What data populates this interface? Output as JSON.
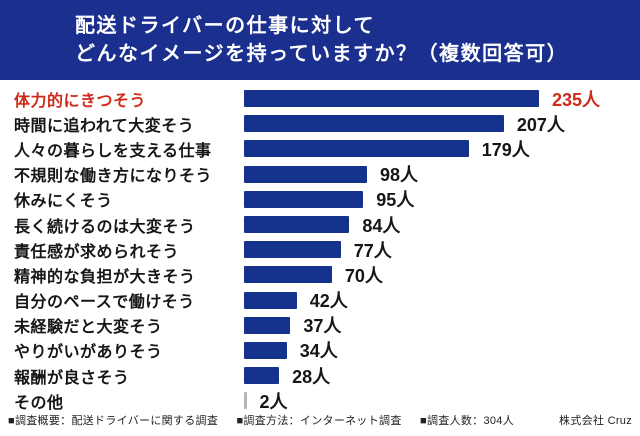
{
  "header": {
    "title_line1": "配送ドライバーの仕事に対して",
    "title_line2": "どんなイメージを持っていますか？（複数回答可）"
  },
  "chart_data": {
    "type": "bar",
    "orientation": "horizontal",
    "title": "配送ドライバーの仕事に対して どんなイメージを持っていますか？（複数回答可）",
    "categories": [
      "体力的にきつそう",
      "時間に追われて大変そう",
      "人々の暮らしを支える仕事",
      "不規則な働き方になりそう",
      "休みにくそう",
      "長く続けるのは大変そう",
      "責任感が求められそう",
      "精神的な負担が大きそう",
      "自分のペースで働けそう",
      "未経験だと大変そう",
      "やりがいがありそう",
      "報酬が良さそう",
      "その他"
    ],
    "values": [
      235,
      207,
      179,
      98,
      95,
      84,
      77,
      70,
      42,
      37,
      34,
      28,
      2
    ],
    "value_suffix": "人",
    "xlim": [
      0,
      250
    ],
    "grid": false,
    "legend": false,
    "highlight_index": 0,
    "sample_size": 304
  },
  "colors": {
    "header_bg": "#1a2f8e",
    "bar": "#15328c",
    "accent_red": "#d02a1a",
    "tiny_bar": "#b3b6bd"
  },
  "footer": {
    "survey_overview": "■調査概要：配送ドライバーに関する調査",
    "survey_method": "■調査方法：インターネット調査",
    "survey_count": "■調査人数：304人",
    "company": "株式会社 Cruz"
  }
}
